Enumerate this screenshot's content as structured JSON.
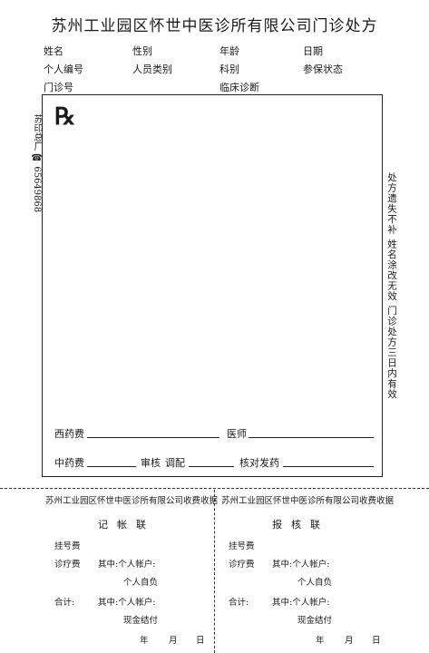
{
  "title": "苏州工业园区怀世中医诊所有限公司门诊处方",
  "header": {
    "name": "姓名",
    "gender": "性别",
    "age": "年龄",
    "date": "日期",
    "personal_no": "个人编号",
    "staff_type": "人员类别",
    "department": "科别",
    "insurance_status": "参保状态",
    "outpatient_no": "门诊号",
    "diagnosis": "临床诊断"
  },
  "rx_symbol": "℞",
  "left_note": "苏印总厂 ☎ 65649868",
  "right_note": "处方遗失不补 姓名涂改无效 门诊处方三日内有效",
  "footer": {
    "western_fee": "西药费",
    "doctor": "医师",
    "chinese_fee": "中药费",
    "review": "审核",
    "dispense": "调配",
    "check_dispense": "核对发药"
  },
  "receipts": [
    {
      "title": "苏州工业园区怀世中医诊所有限公司收费收据",
      "copy": "记帐联",
      "registration": "挂号费",
      "treatment": "诊疗费",
      "of_which_account": "其中:个人帐户:",
      "self_pay": "个人自负",
      "total": "合计:",
      "of_which_account2": "其中:个人帐户:",
      "cash": "现金结付",
      "year": "年",
      "month": "月",
      "day": "日"
    },
    {
      "title": "苏州工业园区怀世中医诊所有限公司收费收据",
      "copy": "报核联",
      "registration": "挂号费",
      "treatment": "诊疗费",
      "of_which_account": "其中:个人帐户:",
      "self_pay": "个人自负",
      "total": "合计:",
      "of_which_account2": "其中:个人帐户:",
      "cash": "现金结付",
      "year": "年",
      "month": "月",
      "day": "日"
    }
  ]
}
